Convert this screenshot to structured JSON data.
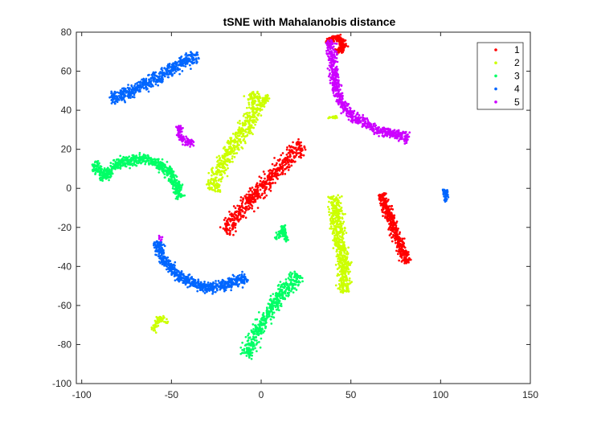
{
  "chart_data": {
    "type": "scatter",
    "title": "tSNE with Mahalanobis distance",
    "xlabel": "",
    "ylabel": "",
    "xlim": [
      -103,
      150
    ],
    "ylim": [
      -100,
      80
    ],
    "xticks": [
      -100,
      -50,
      0,
      50,
      100,
      150
    ],
    "yticks": [
      -100,
      -80,
      -60,
      -40,
      -20,
      0,
      20,
      40,
      60,
      80
    ],
    "grid": false,
    "legend_position": "top-right",
    "series": [
      {
        "name": "1",
        "color": "#ff0000",
        "clusters": [
          {
            "path": [
              [
                -20,
                -22
              ],
              [
                -12,
                -12
              ],
              [
                -5,
                -4
              ],
              [
                3,
                2
              ],
              [
                8,
                8
              ],
              [
                14,
                14
              ],
              [
                19,
                19
              ],
              [
                23,
                23
              ]
            ],
            "width": 4,
            "density": 9
          },
          {
            "path": [
              [
                67,
                -3
              ],
              [
                71,
                -13
              ],
              [
                74,
                -21
              ],
              [
                78,
                -30
              ],
              [
                82,
                -38
              ]
            ],
            "width": 2.5,
            "density": 11
          },
          {
            "path": [
              [
                37,
                74
              ],
              [
                40,
                77
              ],
              [
                45,
                76
              ],
              [
                46,
                72
              ],
              [
                42,
                70
              ]
            ],
            "width": 1.6,
            "density": 12
          }
        ]
      },
      {
        "name": "2",
        "color": "#ccff00",
        "clusters": [
          {
            "path": [
              [
                -27,
                -1
              ],
              [
                -22,
                12
              ],
              [
                -17,
                20
              ],
              [
                -11,
                28
              ],
              [
                -6,
                34
              ],
              [
                -3,
                42
              ],
              [
                -5,
                49
              ]
            ],
            "width": 4,
            "density": 9
          },
          {
            "path": [
              [
                4,
                48
              ],
              [
                0,
                42
              ]
            ],
            "width": 1.5,
            "density": 8
          },
          {
            "path": [
              [
                41,
                -4
              ],
              [
                42,
                -14
              ],
              [
                43,
                -25
              ],
              [
                46,
                -36
              ],
              [
                46,
                -46
              ],
              [
                47,
                -53
              ]
            ],
            "width": 3.5,
            "density": 11
          },
          {
            "path": [
              [
                -60,
                -73
              ],
              [
                -57,
                -66
              ],
              [
                -52,
                -69
              ]
            ],
            "width": 1.5,
            "density": 5
          },
          {
            "path": [
              [
                37,
                36
              ],
              [
                42,
                37
              ]
            ],
            "width": 0.6,
            "density": 3
          }
        ]
      },
      {
        "name": "3",
        "color": "#00ff66",
        "clusters": [
          {
            "path": [
              [
                -93,
                13
              ],
              [
                -87,
                5
              ],
              [
                -82,
                12
              ],
              [
                -74,
                14
              ],
              [
                -67,
                15
              ],
              [
                -60,
                14
              ],
              [
                -53,
                10
              ],
              [
                -48,
                4
              ],
              [
                -45,
                -5
              ]
            ],
            "width": 2.5,
            "density": 10
          },
          {
            "path": [
              [
                -8,
                -86
              ],
              [
                -4,
                -76
              ],
              [
                2,
                -67
              ],
              [
                8,
                -58
              ],
              [
                14,
                -52
              ],
              [
                19,
                -46
              ],
              [
                21,
                -44
              ]
            ],
            "width": 3.5,
            "density": 9
          },
          {
            "path": [
              [
                8,
                -26
              ],
              [
                11,
                -22
              ],
              [
                13,
                -24
              ],
              [
                12,
                -19
              ],
              [
                14,
                -27
              ]
            ],
            "width": 1.2,
            "density": 6
          }
        ]
      },
      {
        "name": "4",
        "color": "#0066ff",
        "clusters": [
          {
            "path": [
              [
                -84,
                46
              ],
              [
                -76,
                48
              ],
              [
                -66,
                53
              ],
              [
                -55,
                58
              ],
              [
                -45,
                64
              ],
              [
                -35,
                68
              ]
            ],
            "width": 3,
            "density": 10
          },
          {
            "path": [
              [
                -58,
                -27
              ],
              [
                -55,
                -36
              ],
              [
                -48,
                -43
              ],
              [
                -38,
                -49
              ],
              [
                -28,
                -51
              ],
              [
                -18,
                -49
              ],
              [
                -8,
                -46
              ]
            ],
            "width": 2.5,
            "density": 11
          },
          {
            "path": [
              [
                101,
                -3
              ],
              [
                103,
                -1
              ],
              [
                104,
                -4
              ],
              [
                102,
                -6
              ]
            ],
            "width": 1.2,
            "density": 5
          }
        ]
      },
      {
        "name": "5",
        "color": "#cc00ff",
        "clusters": [
          {
            "path": [
              [
                -46,
                32
              ],
              [
                -45,
                26
              ],
              [
                -41,
                23
              ],
              [
                -38,
                24
              ]
            ],
            "width": 1.6,
            "density": 8
          },
          {
            "path": [
              [
                38,
                76
              ],
              [
                40,
                66
              ],
              [
                41,
                55
              ],
              [
                44,
                45
              ],
              [
                50,
                38
              ],
              [
                58,
                33
              ],
              [
                67,
                29
              ],
              [
                75,
                28
              ],
              [
                82,
                26
              ]
            ],
            "width": 2.5,
            "density": 9
          },
          {
            "path": [
              [
                -57,
                -25
              ],
              [
                -55,
                -26
              ]
            ],
            "width": 0.8,
            "density": 3
          }
        ]
      }
    ]
  }
}
